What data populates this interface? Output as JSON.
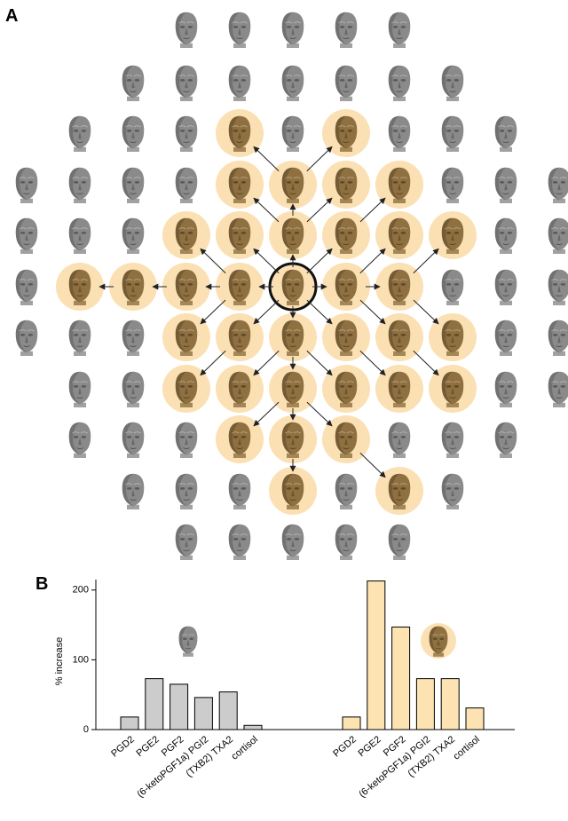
{
  "figure": {
    "panel_a_label": "A"
  },
  "chart_data": {
    "type": "bar",
    "panel_label": "B",
    "y_label": "% increase",
    "categories": [
      "PGD2",
      "PGE2",
      "PGF2",
      "(6-ketoPGF1a) PGI2",
      "(TXB2) TXA2",
      "cortisol"
    ],
    "series": [
      {
        "color": "#cccccc",
        "values": [
          18,
          73,
          65,
          46,
          54,
          6
        ]
      },
      {
        "color": "#fde3b2",
        "values": [
          18,
          213,
          147,
          73,
          73,
          31
        ]
      }
    ],
    "ylim": [
      0,
      215
    ],
    "yticks": [
      0,
      100,
      200
    ]
  }
}
